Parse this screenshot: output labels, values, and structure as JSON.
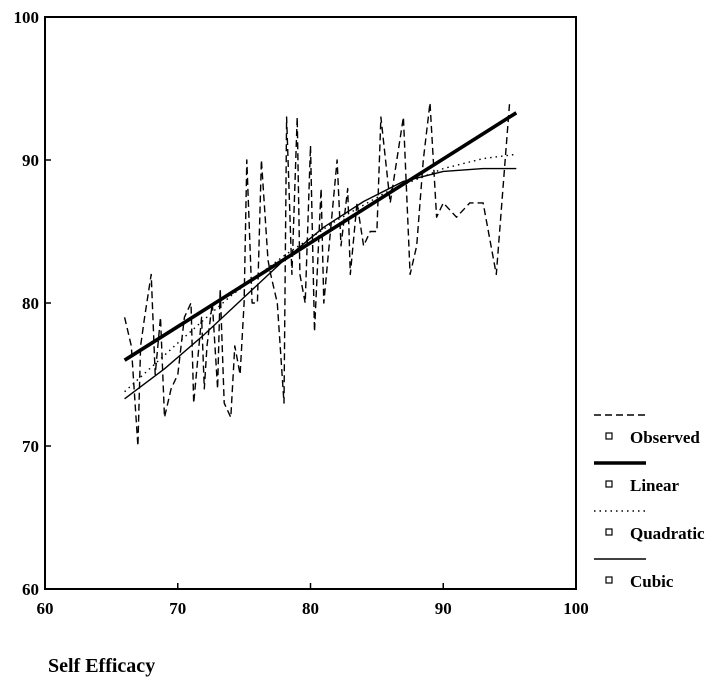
{
  "chart_data": {
    "type": "line",
    "title": "",
    "xlabel": "Self Efficacy",
    "ylabel": "",
    "xlim": [
      60,
      100
    ],
    "ylim": [
      60,
      100
    ],
    "x_ticks": [
      60,
      70,
      80,
      90,
      100
    ],
    "y_ticks": [
      60,
      70,
      80,
      90,
      100
    ],
    "grid": false,
    "legend_position": "right",
    "series": [
      {
        "name": "Observed",
        "style": "dashed",
        "x": [
          66,
          66.5,
          67,
          67.2,
          67.5,
          68,
          68.3,
          68.7,
          69,
          69.5,
          70,
          70.5,
          71,
          71.2,
          71.8,
          72,
          72.2,
          72.6,
          73,
          73.2,
          73.5,
          74,
          74.3,
          74.7,
          75,
          75.2,
          75.6,
          76,
          76.3,
          76.8,
          77,
          77.5,
          78,
          78.2,
          78.6,
          79,
          79.2,
          79.6,
          80,
          80.3,
          80.8,
          81,
          81.4,
          82,
          82.3,
          82.8,
          83,
          83.5,
          84,
          84.5,
          85,
          85.3,
          86,
          86.5,
          87,
          87.5,
          88,
          88.5,
          89,
          89.5,
          90,
          91,
          92,
          93,
          94,
          95
        ],
        "y": [
          79,
          77,
          70,
          77,
          79,
          82,
          75,
          79,
          72,
          74,
          75,
          79,
          80,
          73,
          79,
          74,
          77,
          80,
          74,
          81,
          73,
          72,
          77,
          75,
          80,
          90,
          80,
          80,
          90,
          83,
          82,
          80,
          73,
          93,
          82,
          93,
          82,
          80,
          91,
          78,
          88,
          80,
          84,
          90,
          84,
          88,
          82,
          87,
          84,
          85,
          85,
          93,
          87,
          90,
          93,
          82,
          84,
          90,
          94,
          86,
          87,
          86,
          87,
          87,
          82,
          94
        ]
      },
      {
        "name": "Linear",
        "style": "thick",
        "x": [
          66,
          95.5
        ],
        "y": [
          76,
          93.3
        ]
      },
      {
        "name": "Quadratic",
        "style": "dotted",
        "x": [
          66,
          70,
          74,
          78,
          82,
          86,
          90,
          93,
          95.5
        ],
        "y": [
          73.8,
          77.2,
          80.5,
          83.3,
          85.8,
          87.9,
          89.4,
          90.1,
          90.4
        ]
      },
      {
        "name": "Cubic",
        "style": "thin",
        "x": [
          66,
          69,
          72,
          75,
          78,
          81,
          84,
          87,
          90,
          93,
          95.5
        ],
        "y": [
          73.3,
          75.4,
          77.8,
          80.4,
          83.0,
          85.3,
          87.1,
          88.5,
          89.2,
          89.4,
          89.4
        ]
      }
    ]
  }
}
